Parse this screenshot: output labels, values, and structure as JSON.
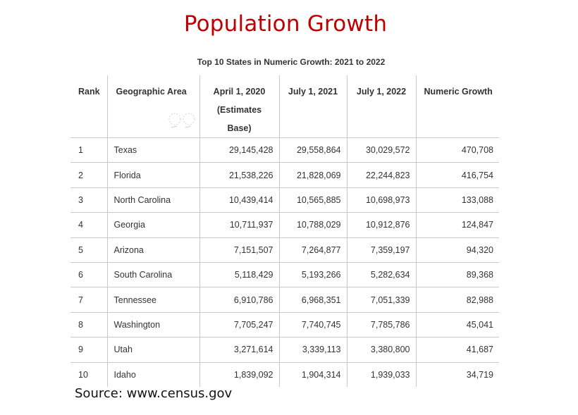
{
  "slide": {
    "title": "Population Growth",
    "source": "Source: www.census.gov"
  },
  "table": {
    "caption": "Top 10 States in Numeric Growth: 2021 to 2022",
    "headers": {
      "rank": "Rank",
      "area": "Geographic Area",
      "april2020_line1": "April 1, 2020",
      "april2020_line2": "(Estimates",
      "april2020_line3": "Base)",
      "july2021": "July 1, 2021",
      "july2022": "July 1, 2022",
      "growth": "Numeric Growth"
    },
    "rows": [
      {
        "rank": "1",
        "area": "Texas",
        "april2020": "29,145,428",
        "july2021": "29,558,864",
        "july2022": "30,029,572",
        "growth": "470,708"
      },
      {
        "rank": "2",
        "area": "Florida",
        "april2020": "21,538,226",
        "july2021": "21,828,069",
        "july2022": "22,244,823",
        "growth": "416,754"
      },
      {
        "rank": "3",
        "area": "North Carolina",
        "april2020": "10,439,414",
        "july2021": "10,565,885",
        "july2022": "10,698,973",
        "growth": "133,088"
      },
      {
        "rank": "4",
        "area": "Georgia",
        "april2020": "10,711,937",
        "july2021": "10,788,029",
        "july2022": "10,912,876",
        "growth": "124,847"
      },
      {
        "rank": "5",
        "area": "Arizona",
        "april2020": "7,151,507",
        "july2021": "7,264,877",
        "july2022": "7,359,197",
        "growth": "94,320"
      },
      {
        "rank": "6",
        "area": "South Carolina",
        "april2020": "5,118,429",
        "july2021": "5,193,266",
        "july2022": "5,282,634",
        "growth": "89,368"
      },
      {
        "rank": "7",
        "area": "Tennessee",
        "april2020": "6,910,786",
        "july2021": "6,968,351",
        "july2022": "7,051,339",
        "growth": "82,988"
      },
      {
        "rank": "8",
        "area": "Washington",
        "april2020": "7,705,247",
        "july2021": "7,740,745",
        "july2022": "7,785,786",
        "growth": "45,041"
      },
      {
        "rank": "9",
        "area": "Utah",
        "april2020": "3,271,614",
        "july2021": "3,339,113",
        "july2022": "3,380,800",
        "growth": "41,687"
      },
      {
        "rank": "10",
        "area": "Idaho",
        "april2020": "1,839,092",
        "july2021": "1,904,314",
        "july2022": "1,939,033",
        "growth": "34,719"
      }
    ]
  },
  "colors": {
    "title": "#c00000",
    "grid": "#c9c9c9",
    "text": "#333333"
  }
}
